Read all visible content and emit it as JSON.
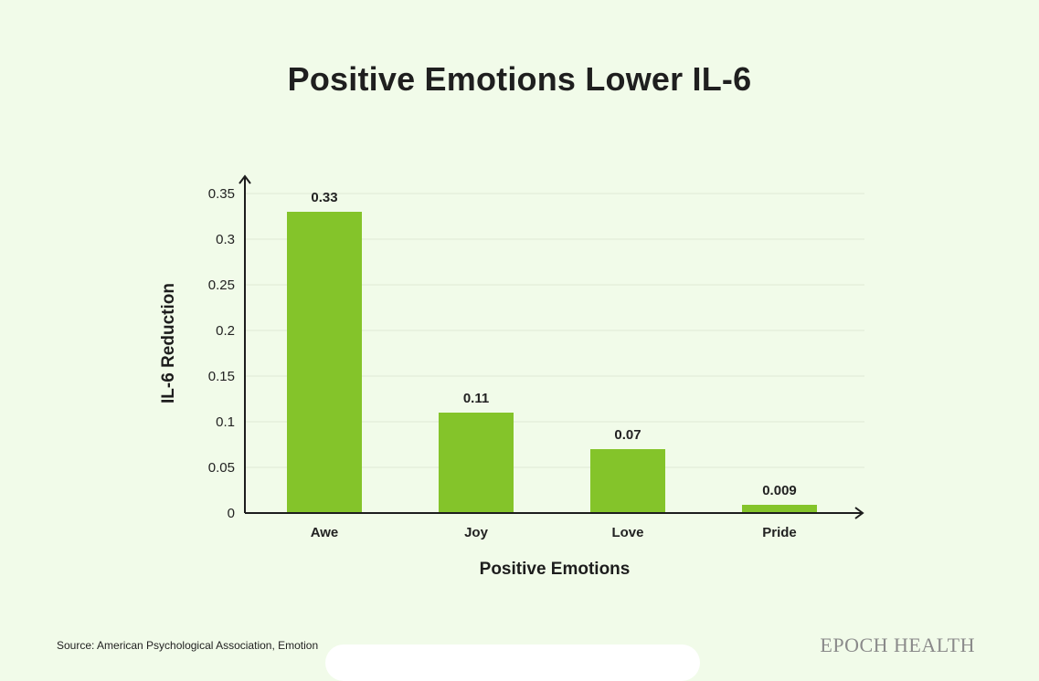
{
  "chart_data": {
    "type": "bar",
    "title": "Positive Emotions Lower IL-6",
    "xlabel": "Positive Emotions",
    "ylabel": "IL-6 Reduction",
    "categories": [
      "Awe",
      "Joy",
      "Love",
      "Pride"
    ],
    "values": [
      0.33,
      0.11,
      0.07,
      0.009
    ],
    "value_labels": [
      "0.33",
      "0.11",
      "0.07",
      "0.009"
    ],
    "ylim": [
      0,
      0.35
    ],
    "yticks": [
      "0",
      "0.05",
      "0.1",
      "0.15",
      "0.2",
      "0.25",
      "0.3",
      "0.35"
    ],
    "grid": true,
    "bar_color": "#84c42a",
    "grid_color": "#dfe9d5",
    "axis_color": "#1d1d1d"
  },
  "footer": {
    "source": "Source: American Psychological Association, Emotion",
    "brand": "EPOCH HEALTH"
  }
}
